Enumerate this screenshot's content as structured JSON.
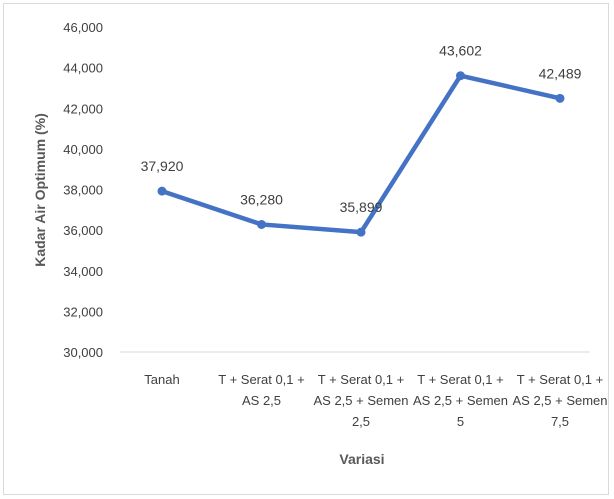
{
  "chart_data": {
    "type": "line",
    "title": "",
    "xlabel": "Variasi",
    "ylabel": "Kadar Air Optimum (%)",
    "ylim": [
      30000,
      46000
    ],
    "yticks": [
      30000,
      32000,
      34000,
      36000,
      38000,
      40000,
      42000,
      44000,
      46000
    ],
    "ytick_labels": [
      "30,000",
      "32,000",
      "34,000",
      "36,000",
      "38,000",
      "40,000",
      "42,000",
      "44,000",
      "46,000"
    ],
    "categories": [
      [
        "Tanah"
      ],
      [
        "T + Serat 0,1 +",
        "AS 2,5"
      ],
      [
        "T + Serat 0,1 +",
        "AS 2,5 + Semen",
        "2,5"
      ],
      [
        "T + Serat 0,1 +",
        "AS 2,5 + Semen",
        "5"
      ],
      [
        "T + Serat 0,1 +",
        "AS 2,5 + Semen",
        "7,5"
      ]
    ],
    "series": [
      {
        "values": [
          37920,
          36280,
          35899,
          43602,
          42489
        ],
        "labels": [
          "37,920",
          "36,280",
          "35,899",
          "43,602",
          "42,489"
        ],
        "color": "#4472c4"
      }
    ],
    "grid": false,
    "legend": "none"
  }
}
